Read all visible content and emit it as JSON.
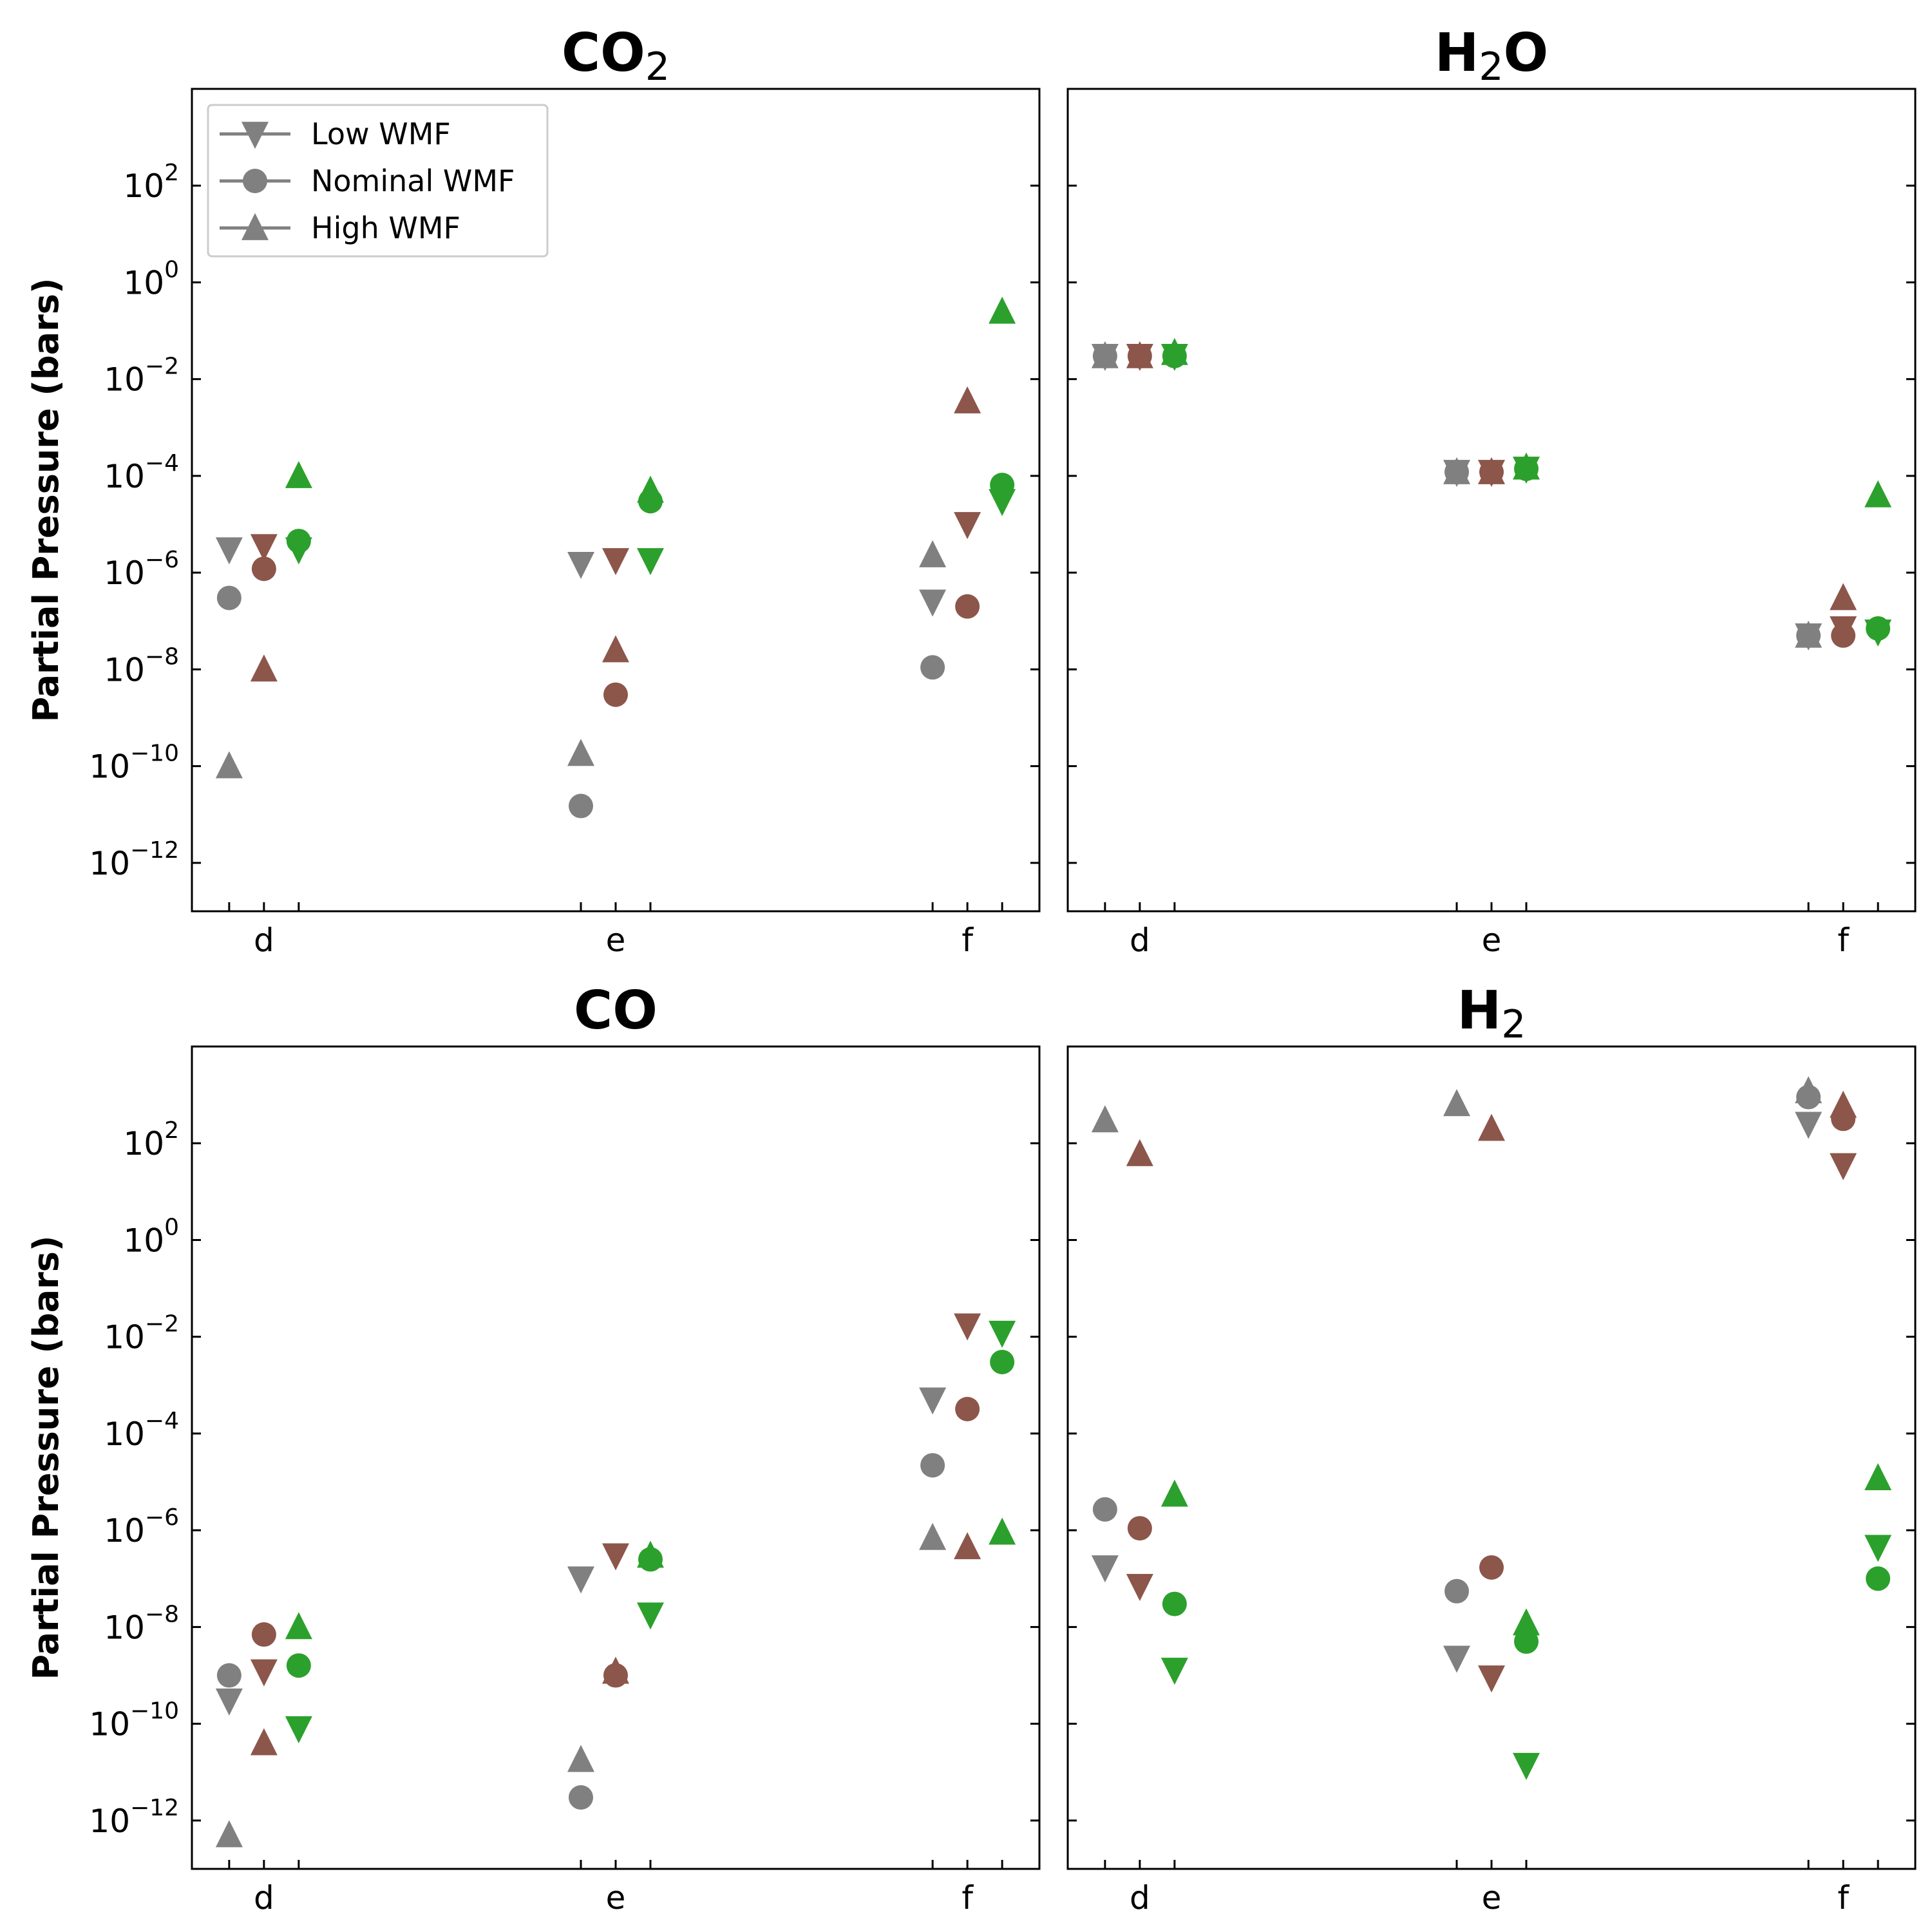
{
  "chart_data": {
    "type": "scatter",
    "ylabel": "Partial Pressure (bars)",
    "yscale": "log",
    "ylim": [
      1e-13,
      10000.0
    ],
    "yticks": [
      -12,
      -10,
      -8,
      -6,
      -4,
      -2,
      0,
      2
    ],
    "categories": [
      "d",
      "e",
      "f"
    ],
    "series_colors": {
      "gray": "#808080",
      "brown": "#8c564b",
      "green": "#2ca02c"
    },
    "legend": {
      "entries": [
        {
          "label": "Low WMF",
          "marker": "triangle-down"
        },
        {
          "label": "Nominal WMF",
          "marker": "circle"
        },
        {
          "label": "High WMF",
          "marker": "triangle-up"
        }
      ],
      "position": "upper-left of first panel"
    },
    "panels": [
      {
        "title": "CO",
        "subscript": "2",
        "title_suffix": "",
        "points": [
          {
            "planet": "d",
            "color": "gray",
            "marker": "low",
            "value": 3e-06
          },
          {
            "planet": "d",
            "color": "gray",
            "marker": "nominal",
            "value": 3e-07
          },
          {
            "planet": "d",
            "color": "gray",
            "marker": "high",
            "value": 1e-10
          },
          {
            "planet": "d",
            "color": "brown",
            "marker": "low",
            "value": 3.5e-06
          },
          {
            "planet": "d",
            "color": "brown",
            "marker": "nominal",
            "value": 1.2e-06
          },
          {
            "planet": "d",
            "color": "brown",
            "marker": "high",
            "value": 1e-08
          },
          {
            "planet": "d",
            "color": "green",
            "marker": "low",
            "value": 3e-06
          },
          {
            "planet": "d",
            "color": "green",
            "marker": "nominal",
            "value": 4.5e-06
          },
          {
            "planet": "d",
            "color": "green",
            "marker": "high",
            "value": 0.0001
          },
          {
            "planet": "e",
            "color": "gray",
            "marker": "low",
            "value": 1.5e-06
          },
          {
            "planet": "e",
            "color": "gray",
            "marker": "nominal",
            "value": 1.5e-11
          },
          {
            "planet": "e",
            "color": "gray",
            "marker": "high",
            "value": 1.8e-10
          },
          {
            "planet": "e",
            "color": "brown",
            "marker": "low",
            "value": 1.8e-06
          },
          {
            "planet": "e",
            "color": "brown",
            "marker": "nominal",
            "value": 3e-09
          },
          {
            "planet": "e",
            "color": "brown",
            "marker": "high",
            "value": 2.5e-08
          },
          {
            "planet": "e",
            "color": "green",
            "marker": "low",
            "value": 1.8e-06
          },
          {
            "planet": "e",
            "color": "green",
            "marker": "nominal",
            "value": 3e-05
          },
          {
            "planet": "e",
            "color": "green",
            "marker": "high",
            "value": 5e-05
          },
          {
            "planet": "f",
            "color": "gray",
            "marker": "low",
            "value": 2.5e-07
          },
          {
            "planet": "f",
            "color": "gray",
            "marker": "nominal",
            "value": 1.1e-08
          },
          {
            "planet": "f",
            "color": "gray",
            "marker": "high",
            "value": 2.3e-06
          },
          {
            "planet": "f",
            "color": "brown",
            "marker": "low",
            "value": 1e-05
          },
          {
            "planet": "f",
            "color": "brown",
            "marker": "nominal",
            "value": 2e-07
          },
          {
            "planet": "f",
            "color": "brown",
            "marker": "high",
            "value": 0.0035
          },
          {
            "planet": "f",
            "color": "green",
            "marker": "low",
            "value": 3e-05
          },
          {
            "planet": "f",
            "color": "green",
            "marker": "nominal",
            "value": 6.5e-05
          },
          {
            "planet": "f",
            "color": "green",
            "marker": "high",
            "value": 0.25
          }
        ]
      },
      {
        "title": "H",
        "subscript": "2",
        "title_suffix": "O",
        "points": [
          {
            "planet": "d",
            "color": "gray",
            "marker": "low",
            "value": 0.03
          },
          {
            "planet": "d",
            "color": "gray",
            "marker": "nominal",
            "value": 0.03
          },
          {
            "planet": "d",
            "color": "gray",
            "marker": "high",
            "value": 0.03
          },
          {
            "planet": "d",
            "color": "brown",
            "marker": "low",
            "value": 0.03
          },
          {
            "planet": "d",
            "color": "brown",
            "marker": "nominal",
            "value": 0.03
          },
          {
            "planet": "d",
            "color": "brown",
            "marker": "high",
            "value": 0.03
          },
          {
            "planet": "d",
            "color": "green",
            "marker": "low",
            "value": 0.03
          },
          {
            "planet": "d",
            "color": "green",
            "marker": "nominal",
            "value": 0.03
          },
          {
            "planet": "d",
            "color": "green",
            "marker": "high",
            "value": 0.035
          },
          {
            "planet": "e",
            "color": "gray",
            "marker": "low",
            "value": 0.00012
          },
          {
            "planet": "e",
            "color": "gray",
            "marker": "nominal",
            "value": 0.00012
          },
          {
            "planet": "e",
            "color": "gray",
            "marker": "high",
            "value": 0.00012
          },
          {
            "planet": "e",
            "color": "brown",
            "marker": "low",
            "value": 0.00012
          },
          {
            "planet": "e",
            "color": "brown",
            "marker": "nominal",
            "value": 0.00012
          },
          {
            "planet": "e",
            "color": "brown",
            "marker": "high",
            "value": 0.00012
          },
          {
            "planet": "e",
            "color": "green",
            "marker": "low",
            "value": 0.00014
          },
          {
            "planet": "e",
            "color": "green",
            "marker": "nominal",
            "value": 0.00014
          },
          {
            "planet": "e",
            "color": "green",
            "marker": "high",
            "value": 0.00015
          },
          {
            "planet": "f",
            "color": "gray",
            "marker": "low",
            "value": 5e-08
          },
          {
            "planet": "f",
            "color": "gray",
            "marker": "nominal",
            "value": 5e-08
          },
          {
            "planet": "f",
            "color": "gray",
            "marker": "high",
            "value": 5e-08
          },
          {
            "planet": "f",
            "color": "brown",
            "marker": "low",
            "value": 7e-08
          },
          {
            "planet": "f",
            "color": "brown",
            "marker": "nominal",
            "value": 5e-08
          },
          {
            "planet": "f",
            "color": "brown",
            "marker": "high",
            "value": 3e-07
          },
          {
            "planet": "f",
            "color": "green",
            "marker": "low",
            "value": 6e-08
          },
          {
            "planet": "f",
            "color": "green",
            "marker": "nominal",
            "value": 7e-08
          },
          {
            "planet": "f",
            "color": "green",
            "marker": "high",
            "value": 4e-05
          }
        ]
      },
      {
        "title": "CO",
        "subscript": "",
        "title_suffix": "",
        "points": [
          {
            "planet": "d",
            "color": "gray",
            "marker": "low",
            "value": 3e-10
          },
          {
            "planet": "d",
            "color": "gray",
            "marker": "nominal",
            "value": 1e-09
          },
          {
            "planet": "d",
            "color": "gray",
            "marker": "high",
            "value": 5e-13
          },
          {
            "planet": "d",
            "color": "brown",
            "marker": "low",
            "value": 1.2e-09
          },
          {
            "planet": "d",
            "color": "brown",
            "marker": "nominal",
            "value": 7e-09
          },
          {
            "planet": "d",
            "color": "brown",
            "marker": "high",
            "value": 4e-11
          },
          {
            "planet": "d",
            "color": "green",
            "marker": "low",
            "value": 8e-11
          },
          {
            "planet": "d",
            "color": "green",
            "marker": "nominal",
            "value": 1.6e-09
          },
          {
            "planet": "d",
            "color": "green",
            "marker": "high",
            "value": 1e-08
          },
          {
            "planet": "e",
            "color": "gray",
            "marker": "low",
            "value": 1e-07
          },
          {
            "planet": "e",
            "color": "gray",
            "marker": "nominal",
            "value": 3e-12
          },
          {
            "planet": "e",
            "color": "gray",
            "marker": "high",
            "value": 1.8e-11
          },
          {
            "planet": "e",
            "color": "brown",
            "marker": "low",
            "value": 3e-07
          },
          {
            "planet": "e",
            "color": "brown",
            "marker": "nominal",
            "value": 1e-09
          },
          {
            "planet": "e",
            "color": "brown",
            "marker": "high",
            "value": 1.2e-09
          },
          {
            "planet": "e",
            "color": "green",
            "marker": "low",
            "value": 1.8e-08
          },
          {
            "planet": "e",
            "color": "green",
            "marker": "nominal",
            "value": 2.5e-07
          },
          {
            "planet": "e",
            "color": "green",
            "marker": "high",
            "value": 3e-07
          },
          {
            "planet": "f",
            "color": "gray",
            "marker": "low",
            "value": 0.0005
          },
          {
            "planet": "f",
            "color": "gray",
            "marker": "nominal",
            "value": 2.2e-05
          },
          {
            "planet": "f",
            "color": "gray",
            "marker": "high",
            "value": 7e-07
          },
          {
            "planet": "f",
            "color": "brown",
            "marker": "low",
            "value": 0.017
          },
          {
            "planet": "f",
            "color": "brown",
            "marker": "nominal",
            "value": 0.00032
          },
          {
            "planet": "f",
            "color": "brown",
            "marker": "high",
            "value": 4.5e-07
          },
          {
            "planet": "f",
            "color": "green",
            "marker": "low",
            "value": 0.012
          },
          {
            "planet": "f",
            "color": "green",
            "marker": "nominal",
            "value": 0.003
          },
          {
            "planet": "f",
            "color": "green",
            "marker": "high",
            "value": 9e-07
          }
        ]
      },
      {
        "title": "H",
        "subscript": "2",
        "title_suffix": "",
        "points": [
          {
            "planet": "d",
            "color": "gray",
            "marker": "low",
            "value": 1.7e-07
          },
          {
            "planet": "d",
            "color": "gray",
            "marker": "nominal",
            "value": 2.7e-06
          },
          {
            "planet": "d",
            "color": "gray",
            "marker": "high",
            "value": 300
          },
          {
            "planet": "d",
            "color": "brown",
            "marker": "low",
            "value": 7e-08
          },
          {
            "planet": "d",
            "color": "brown",
            "marker": "nominal",
            "value": 1.1e-06
          },
          {
            "planet": "d",
            "color": "brown",
            "marker": "high",
            "value": 60
          },
          {
            "planet": "d",
            "color": "green",
            "marker": "low",
            "value": 1.3e-09
          },
          {
            "planet": "d",
            "color": "green",
            "marker": "nominal",
            "value": 3e-08
          },
          {
            "planet": "d",
            "color": "green",
            "marker": "high",
            "value": 5.5e-06
          },
          {
            "planet": "e",
            "color": "gray",
            "marker": "low",
            "value": 2.3e-09
          },
          {
            "planet": "e",
            "color": "gray",
            "marker": "nominal",
            "value": 5.5e-08
          },
          {
            "planet": "e",
            "color": "gray",
            "marker": "high",
            "value": 650
          },
          {
            "planet": "e",
            "color": "brown",
            "marker": "low",
            "value": 9e-10
          },
          {
            "planet": "e",
            "color": "brown",
            "marker": "nominal",
            "value": 1.7e-07
          },
          {
            "planet": "e",
            "color": "brown",
            "marker": "high",
            "value": 200
          },
          {
            "planet": "e",
            "color": "green",
            "marker": "low",
            "value": 1.4e-11
          },
          {
            "planet": "e",
            "color": "green",
            "marker": "nominal",
            "value": 5e-09
          },
          {
            "planet": "e",
            "color": "green",
            "marker": "high",
            "value": 1.2e-08
          },
          {
            "planet": "f",
            "color": "gray",
            "marker": "low",
            "value": 250
          },
          {
            "planet": "f",
            "color": "gray",
            "marker": "nominal",
            "value": 900
          },
          {
            "planet": "f",
            "color": "gray",
            "marker": "high",
            "value": 1200
          },
          {
            "planet": "f",
            "color": "brown",
            "marker": "low",
            "value": 35
          },
          {
            "planet": "f",
            "color": "brown",
            "marker": "nominal",
            "value": 320
          },
          {
            "planet": "f",
            "color": "brown",
            "marker": "high",
            "value": 600
          },
          {
            "planet": "f",
            "color": "green",
            "marker": "low",
            "value": 4.5e-07
          },
          {
            "planet": "f",
            "color": "green",
            "marker": "nominal",
            "value": 1e-07
          },
          {
            "planet": "f",
            "color": "green",
            "marker": "high",
            "value": 1.2e-05
          }
        ]
      }
    ]
  }
}
